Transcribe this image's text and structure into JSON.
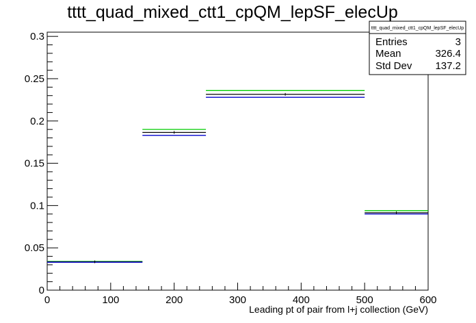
{
  "chart_data": {
    "type": "bar",
    "title": "tttt_quad_mixed_ctt1_cpQM_lepSF_elecUp",
    "xlabel": "Leading pt of pair from l+j collection (GeV)",
    "ylabel": "",
    "xlim": [
      0,
      600
    ],
    "ylim": [
      0,
      0.305
    ],
    "xticks": [
      0,
      100,
      200,
      300,
      400,
      500,
      600
    ],
    "xtick_labels": [
      "0",
      "100",
      "200",
      "300",
      "400",
      "500",
      "600"
    ],
    "yticks": [
      0,
      0.05,
      0.1,
      0.15,
      0.2,
      0.25,
      0.3
    ],
    "ytick_labels": [
      "0",
      "0.05",
      "0.1",
      "0.15",
      "0.2",
      "0.25",
      "0.3"
    ],
    "grid": false,
    "bin_edges": [
      0,
      150,
      250,
      500,
      600
    ],
    "series": [
      {
        "color": "#00cc00",
        "values": [
          0.034,
          0.19,
          0.236,
          0.094
        ]
      },
      {
        "color": "#000000",
        "values": [
          0.0335,
          0.1865,
          0.2315,
          0.0915
        ]
      },
      {
        "color": "#0000cc",
        "values": [
          0.033,
          0.183,
          0.228,
          0.09
        ]
      }
    ],
    "stats_box": {
      "title": "tttt_quad_mixed_ctt1_cpQM_lepSF_elecUp",
      "rows": [
        {
          "label": "Entries",
          "value": "3"
        },
        {
          "label": "Mean",
          "value": "326.4"
        },
        {
          "label": "Std Dev",
          "value": "137.2"
        }
      ],
      "position": "top-right"
    }
  }
}
